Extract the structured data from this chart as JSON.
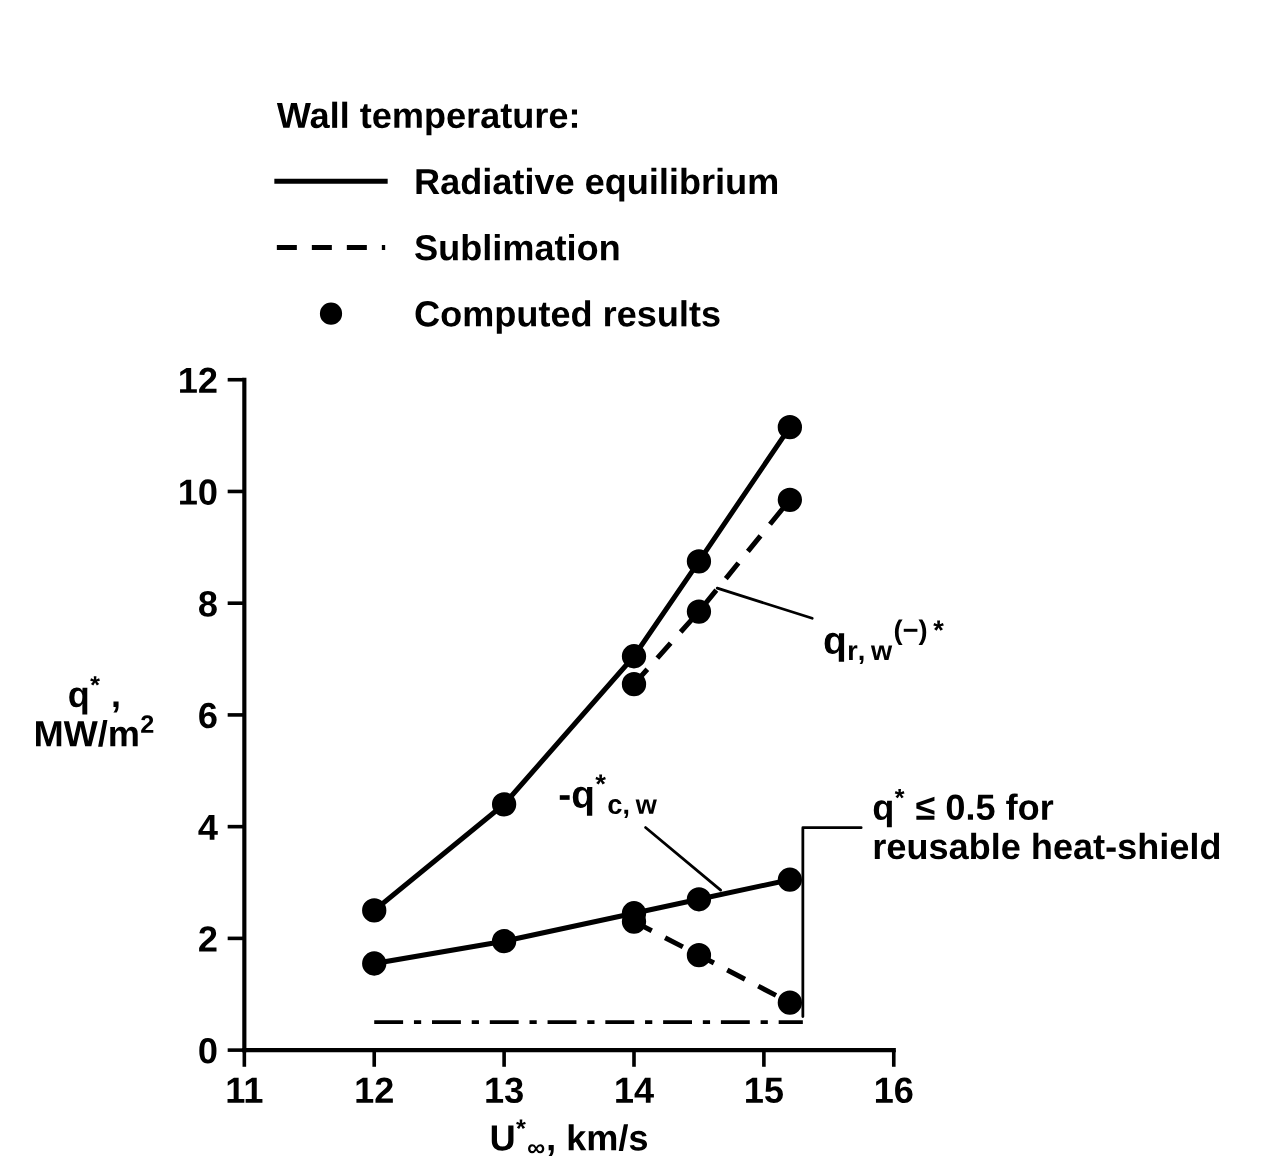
{
  "chart_data": {
    "type": "line",
    "xlabel": "U$^{*}$$_{∞}$, km/s",
    "ylabel": "q$^{*}$ ,\nMW/m$^{2}$",
    "legend_title": "Wall temperature:",
    "legend": "top",
    "xlim": [
      11,
      16
    ],
    "xticks": [
      11,
      12,
      13,
      14,
      15,
      16
    ],
    "ylim": [
      0,
      12
    ],
    "yticks": [
      0,
      2,
      4,
      6,
      8,
      10,
      12
    ],
    "grid": false,
    "series": [
      {
        "name": "Radiative equilibrium",
        "line_style": "solid",
        "marker": "none",
        "color": "#000000",
        "x": [
          12,
          13,
          14,
          14.5,
          15.2
        ],
        "values": [
          2.5,
          4.4,
          7.05,
          8.75,
          11.15
        ]
      },
      {
        "name": "Sublimation",
        "line_style": "dashed",
        "marker": "none",
        "color": "#000000",
        "x": [
          14,
          14.5,
          15.2
        ],
        "values": [
          6.55,
          7.85,
          9.85
        ]
      },
      {
        "line_style": "solid",
        "marker": "none",
        "color": "#000000",
        "x": [
          12,
          13,
          14,
          14.5,
          15.2
        ],
        "values": [
          1.55,
          1.95,
          2.45,
          2.7,
          3.05
        ]
      },
      {
        "line_style": "dashed",
        "marker": "none",
        "color": "#000000",
        "x": [
          14,
          14.5,
          15.2
        ],
        "values": [
          2.3,
          1.7,
          0.85
        ]
      },
      {
        "name": "Computed results",
        "type": "scatter",
        "marker": "circle",
        "color": "#000000",
        "x": [
          12,
          13,
          14,
          14.5,
          15.2,
          14,
          14.5,
          15.2,
          12,
          13,
          14,
          14.5,
          15.2,
          14,
          14.5,
          15.2
        ],
        "values": [
          2.5,
          4.4,
          7.05,
          8.75,
          11.15,
          6.55,
          7.85,
          9.85,
          1.55,
          1.95,
          2.45,
          2.7,
          3.05,
          2.3,
          1.7,
          0.85
        ]
      }
    ],
    "ref_lines": [
      {
        "axis": "y",
        "value": 0.5,
        "label": "q$^{*}$ ≤ 0.5 for\nreusable heat-shield",
        "line_style": "dashdot"
      }
    ],
    "annotations": [
      {
        "text": "q$_{r,w}$$^{(−)*}$",
        "x": 14.6,
        "y": 8.3
      },
      {
        "text": "-q$^{*}$$_{c,w}$",
        "x": 14.7,
        "y": 2.8
      }
    ]
  }
}
